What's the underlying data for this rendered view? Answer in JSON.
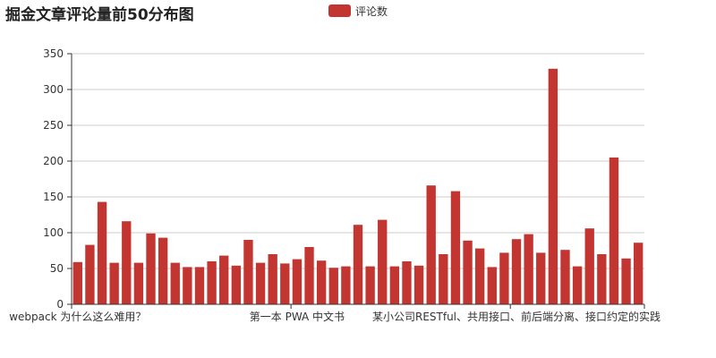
{
  "chart_data": {
    "type": "bar",
    "title": "掘金文章评论量前50分布图",
    "legend": {
      "position": "top-center",
      "entries": [
        "评论数"
      ]
    },
    "series": [
      {
        "name": "评论数",
        "color": "#c23531",
        "values": [
          59,
          83,
          143,
          58,
          116,
          58,
          99,
          93,
          58,
          52,
          52,
          60,
          68,
          54,
          90,
          58,
          70,
          57,
          63,
          80,
          61,
          51,
          53,
          111,
          53,
          118,
          53,
          60,
          54,
          166,
          70,
          158,
          89,
          78,
          52,
          72,
          91,
          98,
          72,
          329,
          76,
          53,
          106,
          70,
          205,
          64,
          86
        ]
      }
    ],
    "category_labels": [
      {
        "index": 0,
        "text": "webpack 为什么这么难用？"
      },
      {
        "index": 18,
        "text": "第一本 PWA 中文书"
      },
      {
        "index": 36,
        "text": "某小公司RESTful、共用接口、前后端分离、接口约定的实践"
      }
    ],
    "yticks": [
      0,
      50,
      100,
      150,
      200,
      250,
      300,
      350
    ],
    "ylim": [
      0,
      350
    ],
    "grid": true,
    "xlabel": "",
    "ylabel": ""
  }
}
